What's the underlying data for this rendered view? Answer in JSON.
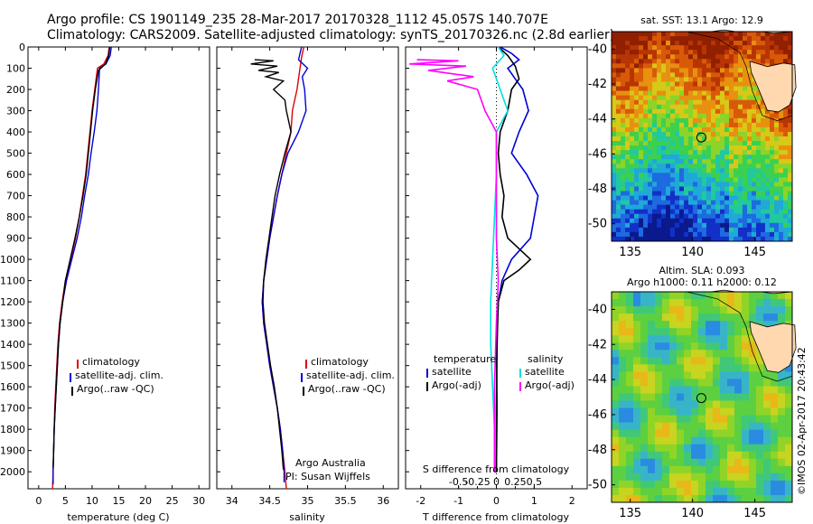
{
  "header": {
    "line1": "Argo profile: CS 1901149_235 28-Mar-2017 20170328_1112 45.057S 140.707E",
    "line2": "Climatology: CARS2009. Satellite-adjusted climatology: synTS_20170326.nc (2.8d earlier)"
  },
  "colors": {
    "climatology": "#e00000",
    "satellite": "#0000d8",
    "argo": "#000000",
    "satellite_diff": "#00e0e0",
    "argo_diff": "#ff00ff"
  },
  "chart_data": [
    {
      "type": "line",
      "name": "temperature-panel",
      "xlabel": "temperature (deg C)",
      "ylabel": "",
      "xlim": [
        -2,
        32
      ],
      "ylim": [
        2080,
        0
      ],
      "xticks": [
        0,
        5,
        10,
        15,
        20,
        25,
        30
      ],
      "yticks": [
        0,
        100,
        200,
        300,
        400,
        500,
        600,
        700,
        800,
        900,
        1000,
        1100,
        1200,
        1300,
        1400,
        1500,
        1600,
        1700,
        1800,
        1900,
        2000
      ],
      "legend": [
        "climatology",
        "satellite-adj. clim.",
        "Argo(..raw -QC)"
      ],
      "series": [
        {
          "name": "climatology",
          "color": "#e00000",
          "points": [
            [
              13.2,
              0
            ],
            [
              13.0,
              40
            ],
            [
              12.2,
              80
            ],
            [
              11.0,
              100
            ],
            [
              10.5,
              200
            ],
            [
              10.0,
              300
            ],
            [
              9.6,
              400
            ],
            [
              9.2,
              500
            ],
            [
              8.8,
              600
            ],
            [
              8.2,
              700
            ],
            [
              7.6,
              800
            ],
            [
              6.9,
              900
            ],
            [
              6.0,
              1000
            ],
            [
              5.0,
              1100
            ],
            [
              4.4,
              1200
            ],
            [
              3.9,
              1300
            ],
            [
              3.6,
              1400
            ],
            [
              3.4,
              1500
            ],
            [
              3.2,
              1600
            ],
            [
              3.0,
              1700
            ],
            [
              2.9,
              1800
            ],
            [
              2.8,
              1900
            ],
            [
              2.7,
              2000
            ],
            [
              2.6,
              2080
            ]
          ]
        },
        {
          "name": "satellite",
          "color": "#0000d8",
          "points": [
            [
              13.6,
              0
            ],
            [
              13.4,
              40
            ],
            [
              12.6,
              80
            ],
            [
              11.4,
              100
            ],
            [
              11.2,
              200
            ],
            [
              10.9,
              300
            ],
            [
              10.4,
              400
            ],
            [
              9.8,
              500
            ],
            [
              9.3,
              600
            ],
            [
              8.6,
              700
            ],
            [
              8.0,
              800
            ],
            [
              7.2,
              900
            ],
            [
              6.2,
              1000
            ],
            [
              5.2,
              1100
            ],
            [
              4.5,
              1200
            ],
            [
              4.0,
              1300
            ],
            [
              3.7,
              1400
            ],
            [
              3.5,
              1500
            ],
            [
              3.3,
              1600
            ],
            [
              3.1,
              1700
            ],
            [
              2.9,
              1800
            ],
            [
              2.8,
              1900
            ],
            [
              2.7,
              2000
            ],
            [
              2.7,
              2060
            ]
          ]
        },
        {
          "name": "argo",
          "color": "#000000",
          "points": [
            [
              13.3,
              0
            ],
            [
              13.1,
              40
            ],
            [
              12.5,
              80
            ],
            [
              11.2,
              110
            ],
            [
              10.6,
              200
            ],
            [
              10.1,
              300
            ],
            [
              9.7,
              400
            ],
            [
              9.3,
              500
            ],
            [
              8.9,
              600
            ],
            [
              8.3,
              700
            ],
            [
              7.6,
              800
            ],
            [
              6.8,
              900
            ],
            [
              5.9,
              1000
            ],
            [
              5.0,
              1100
            ],
            [
              4.5,
              1200
            ],
            [
              4.0,
              1300
            ],
            [
              3.7,
              1400
            ],
            [
              3.5,
              1500
            ],
            [
              3.3,
              1600
            ],
            [
              3.1,
              1700
            ],
            [
              2.9,
              1800
            ],
            [
              2.8,
              1900
            ],
            [
              2.7,
              1980
            ]
          ]
        }
      ]
    },
    {
      "type": "line",
      "name": "salinity-panel",
      "xlabel": "salinity",
      "xlim": [
        33.8,
        36.2
      ],
      "ylim": [
        2080,
        0
      ],
      "xticks": [
        34,
        34.5,
        35,
        35.5,
        36
      ],
      "xticklabels": [
        "34",
        "34.5",
        "35",
        "35.5",
        "36"
      ],
      "legend": [
        "climatology",
        "satellite-adj. clim.",
        "Argo(..raw -QC)"
      ],
      "annotation": [
        "Argo Australia",
        "PI: Susan Wijffels"
      ],
      "series": [
        {
          "name": "climatology",
          "color": "#e00000",
          "points": [
            [
              34.95,
              0
            ],
            [
              34.92,
              50
            ],
            [
              34.9,
              100
            ],
            [
              34.86,
              200
            ],
            [
              34.8,
              300
            ],
            [
              34.78,
              400
            ],
            [
              34.72,
              500
            ],
            [
              34.66,
              600
            ],
            [
              34.6,
              700
            ],
            [
              34.55,
              800
            ],
            [
              34.5,
              900
            ],
            [
              34.46,
              1000
            ],
            [
              34.42,
              1100
            ],
            [
              34.4,
              1200
            ],
            [
              34.42,
              1300
            ],
            [
              34.46,
              1400
            ],
            [
              34.5,
              1500
            ],
            [
              34.55,
              1600
            ],
            [
              34.6,
              1700
            ],
            [
              34.64,
              1800
            ],
            [
              34.67,
              1900
            ],
            [
              34.7,
              2000
            ],
            [
              34.72,
              2080
            ]
          ]
        },
        {
          "name": "satellite",
          "color": "#0000d8",
          "points": [
            [
              34.92,
              0
            ],
            [
              34.88,
              60
            ],
            [
              35.0,
              100
            ],
            [
              34.93,
              140
            ],
            [
              34.96,
              200
            ],
            [
              34.98,
              300
            ],
            [
              34.88,
              400
            ],
            [
              34.74,
              500
            ],
            [
              34.66,
              600
            ],
            [
              34.6,
              700
            ],
            [
              34.55,
              800
            ],
            [
              34.5,
              900
            ],
            [
              34.46,
              1000
            ],
            [
              34.42,
              1100
            ],
            [
              34.4,
              1200
            ],
            [
              34.42,
              1300
            ],
            [
              34.46,
              1400
            ],
            [
              34.5,
              1500
            ],
            [
              34.55,
              1600
            ],
            [
              34.6,
              1700
            ],
            [
              34.64,
              1800
            ],
            [
              34.67,
              1900
            ],
            [
              34.69,
              2000
            ],
            [
              34.69,
              2050
            ]
          ]
        },
        {
          "name": "argo",
          "color": "#000000",
          "points": [
            [
              34.3,
              60
            ],
            [
              34.55,
              65
            ],
            [
              34.25,
              80
            ],
            [
              34.6,
              90
            ],
            [
              34.35,
              110
            ],
            [
              34.62,
              120
            ],
            [
              34.45,
              140
            ],
            [
              34.68,
              160
            ],
            [
              34.55,
              200
            ],
            [
              34.7,
              250
            ],
            [
              34.72,
              300
            ],
            [
              34.75,
              350
            ],
            [
              34.78,
              400
            ],
            [
              34.7,
              500
            ],
            [
              34.63,
              600
            ],
            [
              34.57,
              700
            ],
            [
              34.53,
              800
            ],
            [
              34.49,
              900
            ],
            [
              34.45,
              1000
            ],
            [
              34.42,
              1100
            ],
            [
              34.41,
              1200
            ],
            [
              34.43,
              1300
            ],
            [
              34.47,
              1400
            ],
            [
              34.51,
              1500
            ],
            [
              34.56,
              1600
            ],
            [
              34.6,
              1700
            ],
            [
              34.63,
              1800
            ],
            [
              34.66,
              1900
            ],
            [
              34.68,
              1990
            ]
          ]
        }
      ]
    },
    {
      "type": "line",
      "name": "difference-panel",
      "xlabel": "T difference from climatology",
      "xlabel_top": "S difference from climatology",
      "xlim": [
        -2.4,
        2.4
      ],
      "ylim": [
        2080,
        0
      ],
      "xticks": [
        -2,
        -1,
        0,
        1,
        2
      ],
      "sticks": [
        -0.5,
        -0.25,
        0,
        0.25,
        0.5
      ],
      "sticklabels": [
        "-0.5",
        "-0.25",
        "0",
        "0.25",
        "0.5"
      ],
      "legend_temperature": {
        "header": "temperature",
        "items": [
          "satellite",
          "Argo(-adj)"
        ]
      },
      "legend_salinity": {
        "header": "salinity",
        "items": [
          "satellite",
          "Argo(-adj)"
        ]
      },
      "series": [
        {
          "name": "T satellite",
          "color": "#0000d8",
          "points": [
            [
              0.1,
              0
            ],
            [
              0.4,
              30
            ],
            [
              0.6,
              60
            ],
            [
              0.3,
              100
            ],
            [
              0.5,
              150
            ],
            [
              0.7,
              200
            ],
            [
              0.85,
              300
            ],
            [
              0.6,
              400
            ],
            [
              0.4,
              500
            ],
            [
              0.8,
              600
            ],
            [
              1.1,
              700
            ],
            [
              1.0,
              800
            ],
            [
              0.9,
              900
            ],
            [
              0.4,
              1000
            ],
            [
              0.15,
              1100
            ],
            [
              0.05,
              1200
            ],
            [
              0.0,
              1400
            ],
            [
              0.02,
              1700
            ],
            [
              0.0,
              2000
            ]
          ]
        },
        {
          "name": "T argo",
          "color": "#000000",
          "points": [
            [
              0.05,
              0
            ],
            [
              0.3,
              40
            ],
            [
              0.5,
              90
            ],
            [
              0.6,
              150
            ],
            [
              0.4,
              200
            ],
            [
              0.3,
              300
            ],
            [
              0.1,
              400
            ],
            [
              0.05,
              500
            ],
            [
              0.1,
              600
            ],
            [
              0.2,
              700
            ],
            [
              0.15,
              800
            ],
            [
              0.3,
              900
            ],
            [
              0.9,
              1000
            ],
            [
              0.6,
              1050
            ],
            [
              0.2,
              1100
            ],
            [
              0.05,
              1200
            ],
            [
              0.02,
              1400
            ],
            [
              0.0,
              1700
            ],
            [
              0.0,
              2000
            ]
          ]
        },
        {
          "name": "S satellite",
          "color": "#00e0e0",
          "points": [
            [
              0.05,
              0
            ],
            [
              0.2,
              40
            ],
            [
              -0.1,
              100
            ],
            [
              0.1,
              200
            ],
            [
              0.3,
              300
            ],
            [
              0.0,
              400
            ],
            [
              0.0,
              600
            ],
            [
              -0.05,
              800
            ],
            [
              -0.1,
              1000
            ],
            [
              -0.15,
              1200
            ],
            [
              -0.15,
              1400
            ],
            [
              -0.1,
              1600
            ],
            [
              -0.05,
              1800
            ],
            [
              -0.05,
              2000
            ]
          ]
        },
        {
          "name": "S argo",
          "color": "#ff00ff",
          "points": [
            [
              -2.1,
              60
            ],
            [
              -1.0,
              65
            ],
            [
              -2.3,
              80
            ],
            [
              -0.8,
              90
            ],
            [
              -1.8,
              110
            ],
            [
              -0.6,
              140
            ],
            [
              -1.3,
              160
            ],
            [
              -0.5,
              200
            ],
            [
              -0.3,
              300
            ],
            [
              0.0,
              400
            ],
            [
              0.0,
              600
            ],
            [
              0.0,
              900
            ],
            [
              0.05,
              1100
            ],
            [
              0.0,
              1300
            ],
            [
              -0.05,
              1600
            ],
            [
              -0.05,
              1800
            ],
            [
              -0.05,
              2000
            ]
          ]
        }
      ]
    },
    {
      "type": "heatmap",
      "name": "sst-map",
      "title": "sat. SST: 13.1 Argo: 12.9",
      "xlim": [
        133.5,
        148
      ],
      "ylim": [
        -51,
        -39
      ],
      "xticks": [
        135,
        140,
        145
      ],
      "yticks": [
        -40,
        -42,
        -44,
        -46,
        -48,
        -50
      ],
      "marker": {
        "lon": 140.707,
        "lat": -45.057
      }
    },
    {
      "type": "heatmap",
      "name": "sla-map",
      "title_line1": "Altim. SLA: 0.093",
      "title_line2": "Argo h1000: 0.11 h2000: 0.12",
      "xlim": [
        133.5,
        148
      ],
      "ylim": [
        -51,
        -39
      ],
      "xticks": [
        135,
        140,
        145
      ],
      "yticks": [
        -40,
        -42,
        -44,
        -46,
        -48,
        -50
      ],
      "marker": {
        "lon": 140.707,
        "lat": -45.057
      }
    }
  ],
  "footer_stamp": "©IMOS 02-Apr-2017 20:43:42"
}
